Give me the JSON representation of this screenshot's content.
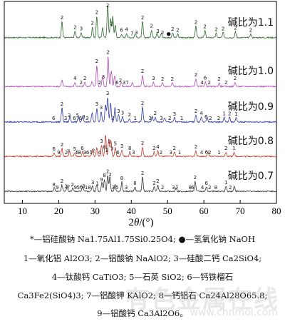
{
  "chart_data": {
    "type": "line",
    "xlabel_prefix": "2",
    "xlabel_var": "θ",
    "xlabel_suffix": "/(°)",
    "xlim": [
      5,
      80
    ],
    "xticks": [
      10,
      20,
      30,
      40,
      50,
      60,
      70,
      80
    ],
    "ylabel": "",
    "series": [
      {
        "name": "碱比为1.1",
        "color": "#2e6b2e",
        "base": 0.18,
        "peaks": [
          [
            20.9,
            0.45
          ],
          [
            24.5,
            0.18
          ],
          [
            26.2,
            0.14
          ],
          [
            29.3,
            0.3
          ],
          [
            30.5,
            0.6
          ],
          [
            32.1,
            0.28
          ],
          [
            33.5,
            0.95
          ],
          [
            34.3,
            0.55
          ],
          [
            34.9,
            0.6
          ],
          [
            35.6,
            0.35
          ],
          [
            37.3,
            0.1
          ],
          [
            38.7,
            0.12
          ],
          [
            41.1,
            0.12
          ],
          [
            43.1,
            0.45
          ],
          [
            45.6,
            0.22
          ],
          [
            47.1,
            0.14
          ],
          [
            48.3,
            0.12
          ],
          [
            51.4,
            0.13
          ],
          [
            52.8,
            0.1
          ],
          [
            57.8,
            0.32
          ],
          [
            60.3,
            0.2
          ],
          [
            63.4,
            0.12
          ],
          [
            65.3,
            0.14
          ],
          [
            68.7,
            0.16
          ],
          [
            72.9,
            0.1
          ]
        ],
        "labels": [
          {
            "x": 20.9,
            "t": "2"
          },
          {
            "x": 24.5,
            "t": "2"
          },
          {
            "x": 26.2,
            "t": "3"
          },
          {
            "x": 29.3,
            "t": "2"
          },
          {
            "x": 30.5,
            "t": "2"
          },
          {
            "x": 33.5,
            "t": "2"
          },
          {
            "x": 34.6,
            "t": "2"
          },
          {
            "x": 37.3,
            "t": "6"
          },
          {
            "x": 38.7,
            "t": "4"
          },
          {
            "x": 40.2,
            "t": "7"
          },
          {
            "x": 41.4,
            "t": "3"
          },
          {
            "x": 43.1,
            "t": "2"
          },
          {
            "x": 45.6,
            "t": "2"
          },
          {
            "x": 47.3,
            "t": "3"
          },
          {
            "x": 48.6,
            "t": "2"
          },
          {
            "x": 50.3,
            "t": "●"
          },
          {
            "x": 51.4,
            "t": "2"
          },
          {
            "x": 52.8,
            "t": "2"
          },
          {
            "x": 57.8,
            "t": "2"
          },
          {
            "x": 60.3,
            "t": "2"
          },
          {
            "x": 63.4,
            "t": "2"
          },
          {
            "x": 65.3,
            "t": "2"
          },
          {
            "x": 68.7,
            "t": "2"
          },
          {
            "x": 72.9,
            "t": "2"
          }
        ]
      },
      {
        "name": "碱比为1.0",
        "color": "#b04ab8",
        "base": 0.12,
        "peaks": [
          [
            20.9,
            0.18
          ],
          [
            24.5,
            0.12
          ],
          [
            27.2,
            0.12
          ],
          [
            29.2,
            0.14
          ],
          [
            30.5,
            0.6
          ],
          [
            32.1,
            0.3
          ],
          [
            33.6,
            0.85
          ],
          [
            34.5,
            0.45
          ],
          [
            35.4,
            0.3
          ],
          [
            37.2,
            0.12
          ],
          [
            40.3,
            0.1
          ],
          [
            43.1,
            0.32
          ],
          [
            46.1,
            0.12
          ],
          [
            48.6,
            0.1
          ],
          [
            51.3,
            0.1
          ],
          [
            57.8,
            0.22
          ],
          [
            60.4,
            0.13
          ],
          [
            64.2,
            0.1
          ],
          [
            68.6,
            0.12
          ]
        ],
        "labels": [
          {
            "x": 24.5,
            "t": "4"
          },
          {
            "x": 26.2,
            "t": "2"
          },
          {
            "x": 27.2,
            "t": "2"
          },
          {
            "x": 30.5,
            "t": "2"
          },
          {
            "x": 31.3,
            "t": "2"
          },
          {
            "x": 32.3,
            "t": "3"
          },
          {
            "x": 33.6,
            "t": "2"
          },
          {
            "x": 36.1,
            "t": "6"
          },
          {
            "x": 37.0,
            "t": "2"
          },
          {
            "x": 38.0,
            "t": "3"
          },
          {
            "x": 38.9,
            "t": "7"
          },
          {
            "x": 43.1,
            "t": "2"
          },
          {
            "x": 46.1,
            "t": "3"
          },
          {
            "x": 48.6,
            "t": "2"
          },
          {
            "x": 51.3,
            "t": "2"
          },
          {
            "x": 57.8,
            "t": "2"
          },
          {
            "x": 59.5,
            "t": "4"
          },
          {
            "x": 60.4,
            "t": "6"
          },
          {
            "x": 61.5,
            "t": "2"
          },
          {
            "x": 64.2,
            "t": "2"
          },
          {
            "x": 66.1,
            "t": "2"
          },
          {
            "x": 68.6,
            "t": "2"
          }
        ]
      },
      {
        "name": "碱比为0.9",
        "color": "#2e3a9e",
        "base": 0.15,
        "peaks": [
          [
            20.9,
            0.4
          ],
          [
            23.1,
            0.15
          ],
          [
            25.4,
            0.15
          ],
          [
            26.6,
            0.14
          ],
          [
            29.2,
            0.25
          ],
          [
            30.5,
            0.4
          ],
          [
            31.7,
            0.3
          ],
          [
            32.9,
            0.5
          ],
          [
            33.5,
            0.7
          ],
          [
            34.3,
            0.55
          ],
          [
            35.5,
            0.4
          ],
          [
            36.5,
            0.2
          ],
          [
            37.6,
            0.15
          ],
          [
            39.5,
            0.1
          ],
          [
            43.1,
            0.42
          ],
          [
            45.8,
            0.15
          ],
          [
            46.6,
            0.14
          ],
          [
            49.2,
            0.12
          ],
          [
            51.9,
            0.12
          ],
          [
            57.8,
            0.2
          ],
          [
            59.3,
            0.14
          ],
          [
            60.9,
            0.14
          ],
          [
            65.6,
            0.13
          ],
          [
            67.1,
            0.13
          ],
          [
            68.9,
            0.12
          ]
        ],
        "labels": [
          {
            "x": 18.6,
            "t": "6"
          },
          {
            "x": 20.9,
            "t": "2"
          },
          {
            "x": 21.9,
            "t": "3"
          },
          {
            "x": 22.9,
            "t": "3"
          },
          {
            "x": 24.3,
            "t": "6"
          },
          {
            "x": 25.2,
            "t": "5"
          },
          {
            "x": 26.0,
            "t": "6"
          },
          {
            "x": 26.9,
            "t": "3"
          },
          {
            "x": 27.8,
            "t": "3"
          },
          {
            "x": 30.5,
            "t": "3"
          },
          {
            "x": 31.7,
            "t": "3"
          },
          {
            "x": 33.5,
            "t": "3"
          },
          {
            "x": 34.9,
            "t": "2"
          },
          {
            "x": 36.5,
            "t": "3"
          },
          {
            "x": 37.6,
            "t": "3"
          },
          {
            "x": 39.5,
            "t": "2"
          },
          {
            "x": 41.1,
            "t": "1"
          },
          {
            "x": 43.1,
            "t": "2"
          },
          {
            "x": 45.2,
            "t": "3"
          },
          {
            "x": 46.6,
            "t": "2"
          },
          {
            "x": 48.3,
            "t": "3"
          },
          {
            "x": 50.6,
            "t": "2"
          },
          {
            "x": 51.9,
            "t": "3"
          },
          {
            "x": 53.9,
            "t": "1"
          },
          {
            "x": 57.8,
            "t": "2"
          },
          {
            "x": 59.3,
            "t": "4"
          },
          {
            "x": 60.6,
            "t": "6"
          },
          {
            "x": 61.8,
            "t": "2"
          },
          {
            "x": 64.1,
            "t": "2"
          },
          {
            "x": 65.6,
            "t": "1"
          },
          {
            "x": 67.1,
            "t": "2"
          },
          {
            "x": 68.9,
            "t": "1"
          }
        ]
      },
      {
        "name": "碱比为0.8",
        "color": "#c0392b",
        "base": 0.12,
        "peaks": [
          [
            18.7,
            0.1
          ],
          [
            20.9,
            0.22
          ],
          [
            23.0,
            0.14
          ],
          [
            24.4,
            0.1
          ],
          [
            26.6,
            0.14
          ],
          [
            29.3,
            0.2
          ],
          [
            30.5,
            0.25
          ],
          [
            31.8,
            0.32
          ],
          [
            32.9,
            0.62
          ],
          [
            33.8,
            0.5
          ],
          [
            34.4,
            0.45
          ],
          [
            35.6,
            0.25
          ],
          [
            37.4,
            0.18
          ],
          [
            39.6,
            0.12
          ],
          [
            43.1,
            0.26
          ],
          [
            46.3,
            0.12
          ],
          [
            47.3,
            0.16
          ],
          [
            51.9,
            0.12
          ],
          [
            57.8,
            0.16
          ],
          [
            61.1,
            0.12
          ],
          [
            66.1,
            0.12
          ],
          [
            68.3,
            0.12
          ]
        ],
        "labels": [
          {
            "x": 18.7,
            "t": "6"
          },
          {
            "x": 20.0,
            "t": "9"
          },
          {
            "x": 20.9,
            "t": "2"
          },
          {
            "x": 22.1,
            "t": "2"
          },
          {
            "x": 22.7,
            "t": "7"
          },
          {
            "x": 24.4,
            "t": "5"
          },
          {
            "x": 25.1,
            "t": "6"
          },
          {
            "x": 25.8,
            "t": "8"
          },
          {
            "x": 26.5,
            "t": "6"
          },
          {
            "x": 27.2,
            "t": "3"
          },
          {
            "x": 28.0,
            "t": "6"
          },
          {
            "x": 28.9,
            "t": "1"
          },
          {
            "x": 29.6,
            "t": "2"
          },
          {
            "x": 31.2,
            "t": "4"
          },
          {
            "x": 31.8,
            "t": "3"
          },
          {
            "x": 32.6,
            "t": "8"
          },
          {
            "x": 33.3,
            "t": "3"
          },
          {
            "x": 34.0,
            "t": "2"
          },
          {
            "x": 34.7,
            "t": "3"
          },
          {
            "x": 35.6,
            "t": "5"
          },
          {
            "x": 36.3,
            "t": "6"
          },
          {
            "x": 37.4,
            "t": "3"
          },
          {
            "x": 39.6,
            "t": "8"
          },
          {
            "x": 40.6,
            "t": "3"
          },
          {
            "x": 43.1,
            "t": "2"
          },
          {
            "x": 46.3,
            "t": "2"
          },
          {
            "x": 47.3,
            "t": "4"
          },
          {
            "x": 48.2,
            "t": "2"
          },
          {
            "x": 50.9,
            "t": "3"
          },
          {
            "x": 51.9,
            "t": "2"
          },
          {
            "x": 53.3,
            "t": "1"
          },
          {
            "x": 57.8,
            "t": "2"
          },
          {
            "x": 59.4,
            "t": "4"
          },
          {
            "x": 60.7,
            "t": "6"
          },
          {
            "x": 61.6,
            "t": "2"
          },
          {
            "x": 64.2,
            "t": "1"
          },
          {
            "x": 66.1,
            "t": "2"
          },
          {
            "x": 68.3,
            "t": "1"
          }
        ]
      },
      {
        "name": "碱比为0.7",
        "color": "#333333",
        "base": 0.12,
        "peaks": [
          [
            18.8,
            0.1
          ],
          [
            20.9,
            0.18
          ],
          [
            22.3,
            0.13
          ],
          [
            23.9,
            0.1
          ],
          [
            26.6,
            0.13
          ],
          [
            29.3,
            0.16
          ],
          [
            30.5,
            0.2
          ],
          [
            31.9,
            0.26
          ],
          [
            32.6,
            0.34
          ],
          [
            33.5,
            0.45
          ],
          [
            34.1,
            0.42
          ],
          [
            35.5,
            0.2
          ],
          [
            37.4,
            0.26
          ],
          [
            41.0,
            0.12
          ],
          [
            43.1,
            0.4
          ],
          [
            46.3,
            0.12
          ],
          [
            47.3,
            0.18
          ],
          [
            52.3,
            0.1
          ],
          [
            57.6,
            0.28
          ],
          [
            60.7,
            0.12
          ],
          [
            66.1,
            0.14
          ],
          [
            68.4,
            0.14
          ]
        ],
        "labels": [
          {
            "x": 18.7,
            "t": "8"
          },
          {
            "x": 19.6,
            "t": "9"
          },
          {
            "x": 20.9,
            "t": "2"
          },
          {
            "x": 22.0,
            "t": "2"
          },
          {
            "x": 22.7,
            "t": "7"
          },
          {
            "x": 23.8,
            "t": "2"
          },
          {
            "x": 24.6,
            "t": "9"
          },
          {
            "x": 25.4,
            "t": "5"
          },
          {
            "x": 26.2,
            "t": "6"
          },
          {
            "x": 26.9,
            "t": "3"
          },
          {
            "x": 27.6,
            "t": "1"
          },
          {
            "x": 28.5,
            "t": "8"
          },
          {
            "x": 29.4,
            "t": "3"
          },
          {
            "x": 30.7,
            "t": "1"
          },
          {
            "x": 31.8,
            "t": "9"
          },
          {
            "x": 32.6,
            "t": "8"
          },
          {
            "x": 33.5,
            "t": "2"
          },
          {
            "x": 34.2,
            "t": "2"
          },
          {
            "x": 35.0,
            "t": "3"
          },
          {
            "x": 36.1,
            "t": "5"
          },
          {
            "x": 37.4,
            "t": "8"
          },
          {
            "x": 38.6,
            "t": "3"
          },
          {
            "x": 41.0,
            "t": "8"
          },
          {
            "x": 43.1,
            "t": "2"
          },
          {
            "x": 46.3,
            "t": "2"
          },
          {
            "x": 47.3,
            "t": "2"
          },
          {
            "x": 48.6,
            "t": "2"
          },
          {
            "x": 51.6,
            "t": "3"
          },
          {
            "x": 52.6,
            "t": "1"
          },
          {
            "x": 57.6,
            "t": "2"
          },
          {
            "x": 56.2,
            "t": "8"
          },
          {
            "x": 56.9,
            "t": "6"
          },
          {
            "x": 59.6,
            "t": "4"
          },
          {
            "x": 60.7,
            "t": "6"
          },
          {
            "x": 61.6,
            "t": "2"
          },
          {
            "x": 63.3,
            "t": "8"
          },
          {
            "x": 66.1,
            "t": "1"
          },
          {
            "x": 67.3,
            "t": "2"
          }
        ]
      }
    ]
  },
  "legend_lines": [
    "*—铝硅酸钠 Na1.75Al1.75Si0.25O4; ●—氢氧化钠 NaOH",
    "1—氧化铝 Al2O3; 2—铝酸钠 NaAlO2; 3—硅酸二钙 Ca2SiO4;",
    "4—钛酸钙 CaTiO3; 5—石英 SiO2; 6—钙铁榴石",
    "Ca3Fe2(SiO4)3; 7—铝酸钾 KAlO2; 8—钙铝石 Ca24Al28O65.8;",
    "9—铝酸钙 Ca3Al2O6。"
  ],
  "watermark": "有色金属在线",
  "watermark_url": "www.cnnmol.com"
}
